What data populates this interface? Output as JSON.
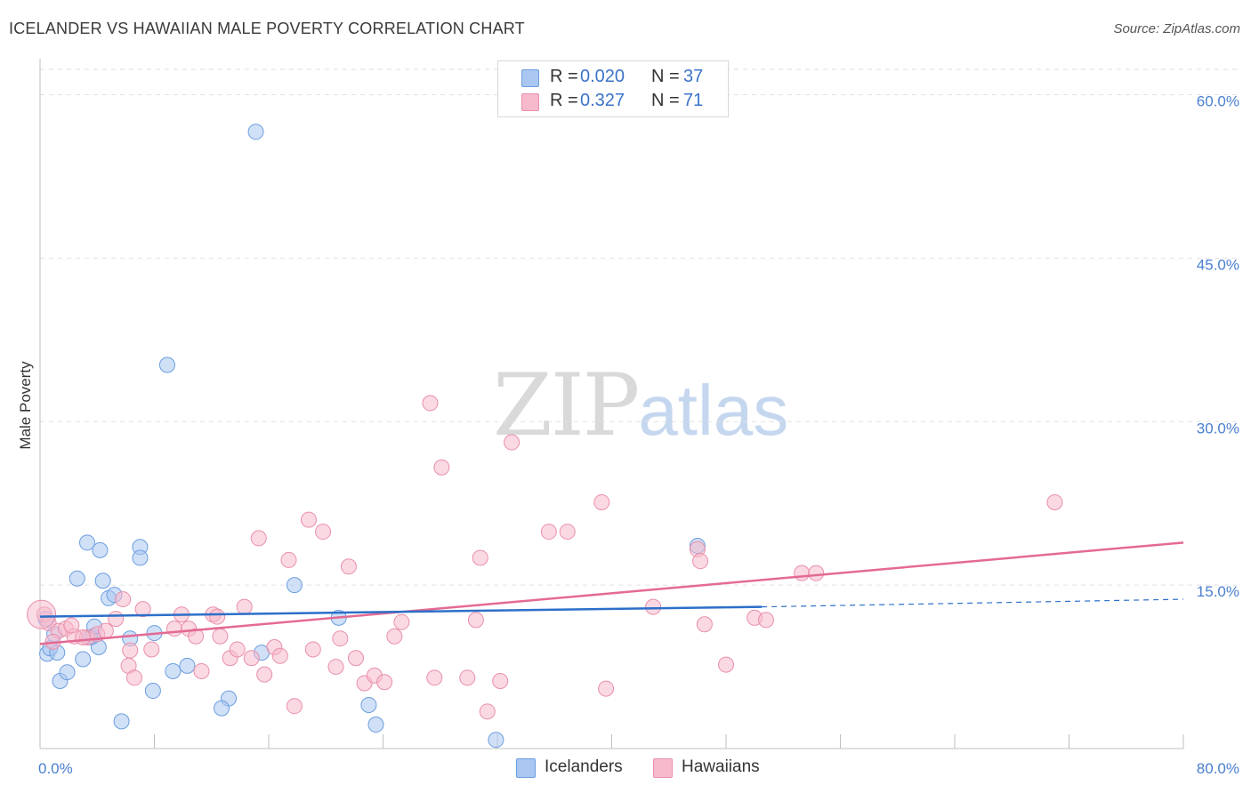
{
  "title": "ICELANDER VS HAWAIIAN MALE POVERTY CORRELATION CHART",
  "source": "Source: ZipAtlas.com",
  "watermark": {
    "part1": "ZIP",
    "part2": "atlas"
  },
  "legend": {
    "rows": [
      {
        "r_label": "R =",
        "r_value": "0.020",
        "n_label": "N =",
        "n_value": "37",
        "color": "#a9c7f0"
      },
      {
        "r_label": "R =",
        "r_value": "0.327",
        "n_label": "N =",
        "n_value": "71",
        "color": "#f7b9cc"
      }
    ]
  },
  "bottom_legend": [
    {
      "label": "Icelanders",
      "color": "#a9c7f0"
    },
    {
      "label": "Hawaiians",
      "color": "#f7b9cc"
    }
  ],
  "chart_data": {
    "type": "scatter",
    "title": "ICELANDER VS HAWAIIAN MALE POVERTY CORRELATION CHART",
    "xlabel": "",
    "ylabel": "Male Poverty",
    "xlim": [
      0,
      80
    ],
    "ylim": [
      0,
      62
    ],
    "x_tick_labels": [
      "0.0%",
      "80.0%"
    ],
    "y_ticks": [
      15,
      30,
      45,
      60
    ],
    "y_tick_labels": [
      "15.0%",
      "30.0%",
      "45.0%",
      "60.0%"
    ],
    "grid": true,
    "series": [
      {
        "name": "Icelanders",
        "color": "#a9c7f0",
        "stroke": "#6b9ee0",
        "trend": {
          "x0": 0,
          "y0": 12.1,
          "x1": 50.5,
          "y1": 13.0,
          "dash_to": 80,
          "dash_y": 13.7,
          "color": "#2c6fc9"
        },
        "points": [
          [
            15.1,
            56.6
          ],
          [
            8.9,
            35.2
          ],
          [
            0.4,
            11.9
          ],
          [
            0.5,
            8.7
          ],
          [
            0.7,
            9.2
          ],
          [
            1.2,
            8.8
          ],
          [
            1.4,
            6.2
          ],
          [
            1.9,
            7.0
          ],
          [
            2.6,
            15.6
          ],
          [
            3.3,
            18.9
          ],
          [
            4.2,
            18.2
          ],
          [
            4.4,
            15.4
          ],
          [
            4.8,
            13.8
          ],
          [
            5.2,
            14.1
          ],
          [
            3.7,
            10.3
          ],
          [
            4.1,
            9.3
          ],
          [
            3.0,
            8.2
          ],
          [
            3.5,
            10.2
          ],
          [
            3.8,
            11.2
          ],
          [
            7.0,
            18.5
          ],
          [
            7.0,
            17.5
          ],
          [
            6.3,
            10.1
          ],
          [
            8.0,
            10.6
          ],
          [
            7.9,
            5.3
          ],
          [
            9.3,
            7.1
          ],
          [
            10.3,
            7.6
          ],
          [
            5.7,
            2.5
          ],
          [
            13.2,
            4.6
          ],
          [
            12.7,
            3.7
          ],
          [
            15.5,
            8.8
          ],
          [
            17.8,
            15.0
          ],
          [
            20.9,
            12.0
          ],
          [
            23.0,
            4.0
          ],
          [
            23.5,
            2.2
          ],
          [
            31.9,
            0.8
          ],
          [
            46.0,
            18.6
          ],
          [
            1.0,
            10.5
          ]
        ]
      },
      {
        "name": "Hawaiians",
        "color": "#f7b9cc",
        "stroke": "#e98fab",
        "trend": {
          "x0": 0,
          "y0": 9.6,
          "x1": 80,
          "y1": 18.9,
          "color": "#e46a93"
        },
        "points": [
          [
            0.3,
            12.3
          ],
          [
            0.6,
            11.5
          ],
          [
            1.3,
            10.8
          ],
          [
            1.8,
            11.0
          ],
          [
            2.4,
            10.3
          ],
          [
            3.3,
            10.2
          ],
          [
            4.0,
            10.5
          ],
          [
            4.6,
            10.8
          ],
          [
            5.3,
            11.9
          ],
          [
            5.8,
            13.7
          ],
          [
            6.2,
            7.6
          ],
          [
            6.3,
            9.0
          ],
          [
            6.6,
            6.5
          ],
          [
            7.2,
            12.8
          ],
          [
            7.8,
            9.1
          ],
          [
            9.4,
            11.0
          ],
          [
            9.9,
            12.3
          ],
          [
            10.4,
            11.0
          ],
          [
            10.9,
            10.3
          ],
          [
            11.3,
            7.1
          ],
          [
            12.1,
            12.3
          ],
          [
            12.4,
            12.1
          ],
          [
            12.6,
            10.3
          ],
          [
            13.3,
            8.3
          ],
          [
            13.8,
            9.1
          ],
          [
            14.3,
            13.0
          ],
          [
            14.8,
            8.3
          ],
          [
            15.3,
            19.3
          ],
          [
            15.7,
            6.8
          ],
          [
            16.4,
            9.3
          ],
          [
            16.8,
            8.5
          ],
          [
            17.4,
            17.3
          ],
          [
            17.8,
            3.9
          ],
          [
            18.8,
            21.0
          ],
          [
            19.1,
            9.1
          ],
          [
            19.8,
            19.9
          ],
          [
            20.7,
            7.5
          ],
          [
            21.0,
            10.1
          ],
          [
            21.6,
            16.7
          ],
          [
            22.1,
            8.3
          ],
          [
            22.7,
            6.0
          ],
          [
            23.4,
            6.7
          ],
          [
            24.1,
            6.1
          ],
          [
            24.8,
            10.3
          ],
          [
            25.3,
            11.6
          ],
          [
            27.3,
            31.7
          ],
          [
            27.6,
            6.5
          ],
          [
            28.1,
            25.8
          ],
          [
            29.9,
            6.5
          ],
          [
            30.5,
            11.8
          ],
          [
            30.8,
            17.5
          ],
          [
            31.3,
            3.4
          ],
          [
            32.2,
            6.2
          ],
          [
            33.0,
            28.1
          ],
          [
            35.6,
            19.9
          ],
          [
            36.9,
            19.9
          ],
          [
            39.3,
            22.6
          ],
          [
            39.6,
            5.5
          ],
          [
            42.9,
            13.0
          ],
          [
            46.0,
            18.3
          ],
          [
            46.2,
            17.2
          ],
          [
            46.5,
            11.4
          ],
          [
            48.0,
            7.7
          ],
          [
            50.0,
            12.0
          ],
          [
            50.8,
            11.8
          ],
          [
            53.3,
            16.1
          ],
          [
            54.3,
            16.1
          ],
          [
            71.0,
            22.6
          ],
          [
            3.0,
            10.2
          ],
          [
            0.9,
            9.8
          ],
          [
            2.2,
            11.3
          ]
        ]
      }
    ]
  }
}
